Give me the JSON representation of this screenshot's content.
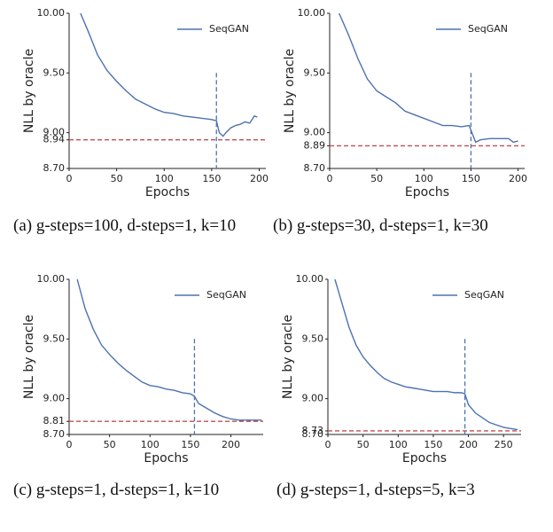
{
  "chart_data": [
    {
      "type": "line",
      "caption": "(a)   g-steps=100,  d-steps=1, k=10",
      "ylabel": "NLL by oracle",
      "xlabel": "Epochs",
      "x": [
        12,
        20,
        30,
        40,
        50,
        60,
        70,
        80,
        90,
        100,
        110,
        120,
        130,
        140,
        150,
        155,
        158,
        162,
        165,
        170,
        175,
        180,
        185,
        190,
        195,
        198
      ],
      "series": [
        {
          "name": "SeqGAN",
          "color": "#4c72b0",
          "values": [
            10.0,
            9.85,
            9.65,
            9.52,
            9.43,
            9.35,
            9.28,
            9.24,
            9.2,
            9.17,
            9.16,
            9.14,
            9.13,
            9.12,
            9.11,
            9.1,
            9.0,
            8.97,
            9.0,
            9.04,
            9.06,
            9.07,
            9.09,
            9.08,
            9.14,
            9.13
          ]
        }
      ],
      "xlim": [
        0,
        207
      ],
      "xticks": [
        0,
        50,
        100,
        150,
        200
      ],
      "ylim": [
        8.7,
        10.0
      ],
      "yticks": [
        {
          "value": 8.7,
          "label": "8.70"
        },
        8.94,
        {
          "value": 9.0,
          "label": "9.00"
        },
        {
          "value": 9.5,
          "label": "9.50"
        },
        {
          "value": 10.0,
          "label": "10.00"
        }
      ],
      "vline": 155,
      "hline": 8.94,
      "vline_color": "#4c72b0",
      "hline_color": "#c44e52",
      "legend": "upper right"
    },
    {
      "type": "line",
      "caption": "(b)        g-steps=30,  d-steps=1, k=30",
      "ylabel": "NLL by oracle",
      "xlabel": "Epochs",
      "x": [
        10,
        20,
        30,
        40,
        50,
        60,
        70,
        80,
        90,
        100,
        110,
        120,
        130,
        140,
        148,
        150,
        155,
        160,
        170,
        180,
        190,
        195,
        200
      ],
      "series": [
        {
          "name": "SeqGAN",
          "color": "#4c72b0",
          "values": [
            10.0,
            9.82,
            9.62,
            9.45,
            9.35,
            9.3,
            9.25,
            9.18,
            9.15,
            9.12,
            9.09,
            9.06,
            9.06,
            9.05,
            9.06,
            9.02,
            8.92,
            8.94,
            8.95,
            8.95,
            8.95,
            8.92,
            8.93
          ]
        }
      ],
      "xlim": [
        0,
        207
      ],
      "xticks": [
        0,
        50,
        100,
        150,
        200
      ],
      "ylim": [
        8.7,
        10.0
      ],
      "yticks": [
        {
          "value": 8.7,
          "label": "8.70"
        },
        8.89,
        {
          "value": 9.0,
          "label": "9.00"
        },
        {
          "value": 9.5,
          "label": "9.50"
        },
        {
          "value": 10.0,
          "label": "10.00"
        }
      ],
      "vline": 150,
      "hline": 8.89,
      "vline_color": "#4c72b0",
      "hline_color": "#c44e52",
      "legend": "upper right"
    },
    {
      "type": "line",
      "caption": "(c)   g-steps=1, d-steps=1, k=10",
      "ylabel": "NLL by oracle",
      "xlabel": "Epochs",
      "x": [
        10,
        20,
        30,
        40,
        50,
        60,
        70,
        80,
        90,
        100,
        110,
        120,
        130,
        140,
        150,
        155,
        160,
        170,
        180,
        190,
        200,
        210,
        220,
        230,
        238
      ],
      "series": [
        {
          "name": "SeqGAN",
          "color": "#4c72b0",
          "values": [
            10.0,
            9.75,
            9.58,
            9.45,
            9.37,
            9.3,
            9.24,
            9.19,
            9.14,
            9.11,
            9.1,
            9.08,
            9.07,
            9.05,
            9.04,
            9.02,
            8.96,
            8.92,
            8.88,
            8.85,
            8.83,
            8.82,
            8.82,
            8.82,
            8.82
          ]
        }
      ],
      "xlim": [
        0,
        240
      ],
      "xticks": [
        0,
        50,
        100,
        150,
        200
      ],
      "ylim": [
        8.7,
        10.0
      ],
      "yticks": [
        {
          "value": 8.7,
          "label": "8.70"
        },
        8.81,
        {
          "value": 9.0,
          "label": "9.00"
        },
        {
          "value": 9.5,
          "label": "9.50"
        },
        {
          "value": 10.0,
          "label": "10.00"
        }
      ],
      "vline": 155,
      "hline": 8.81,
      "vline_color": "#4c72b0",
      "hline_color": "#c44e52",
      "legend": "upper right"
    },
    {
      "type": "line",
      "caption": "(d)   g-steps=1, d-steps=5, k=3",
      "ylabel": "NLL by oracle",
      "xlabel": "Epochs",
      "x": [
        10,
        20,
        30,
        40,
        50,
        60,
        70,
        80,
        90,
        100,
        110,
        120,
        130,
        140,
        150,
        160,
        170,
        180,
        190,
        195,
        200,
        210,
        220,
        230,
        240,
        250,
        260,
        270
      ],
      "series": [
        {
          "name": "SeqGAN",
          "color": "#4c72b0",
          "values": [
            10.0,
            9.8,
            9.6,
            9.45,
            9.35,
            9.28,
            9.22,
            9.17,
            9.14,
            9.12,
            9.1,
            9.09,
            9.08,
            9.07,
            9.06,
            9.06,
            9.06,
            9.05,
            9.05,
            9.04,
            8.95,
            8.88,
            8.84,
            8.8,
            8.78,
            8.76,
            8.75,
            8.74
          ]
        }
      ],
      "xlim": [
        0,
        275
      ],
      "xticks": [
        0,
        50,
        100,
        150,
        200,
        250
      ],
      "ylim": [
        8.7,
        10.0
      ],
      "yticks": [
        {
          "value": 8.7,
          "label": "8.70"
        },
        8.73,
        {
          "value": 9.0,
          "label": "9.00"
        },
        {
          "value": 9.5,
          "label": "9.50"
        },
        {
          "value": 10.0,
          "label": "10.00"
        }
      ],
      "vline": 195,
      "hline": 8.73,
      "vline_color": "#4c72b0",
      "hline_color": "#c44e52",
      "legend": "upper right"
    }
  ]
}
